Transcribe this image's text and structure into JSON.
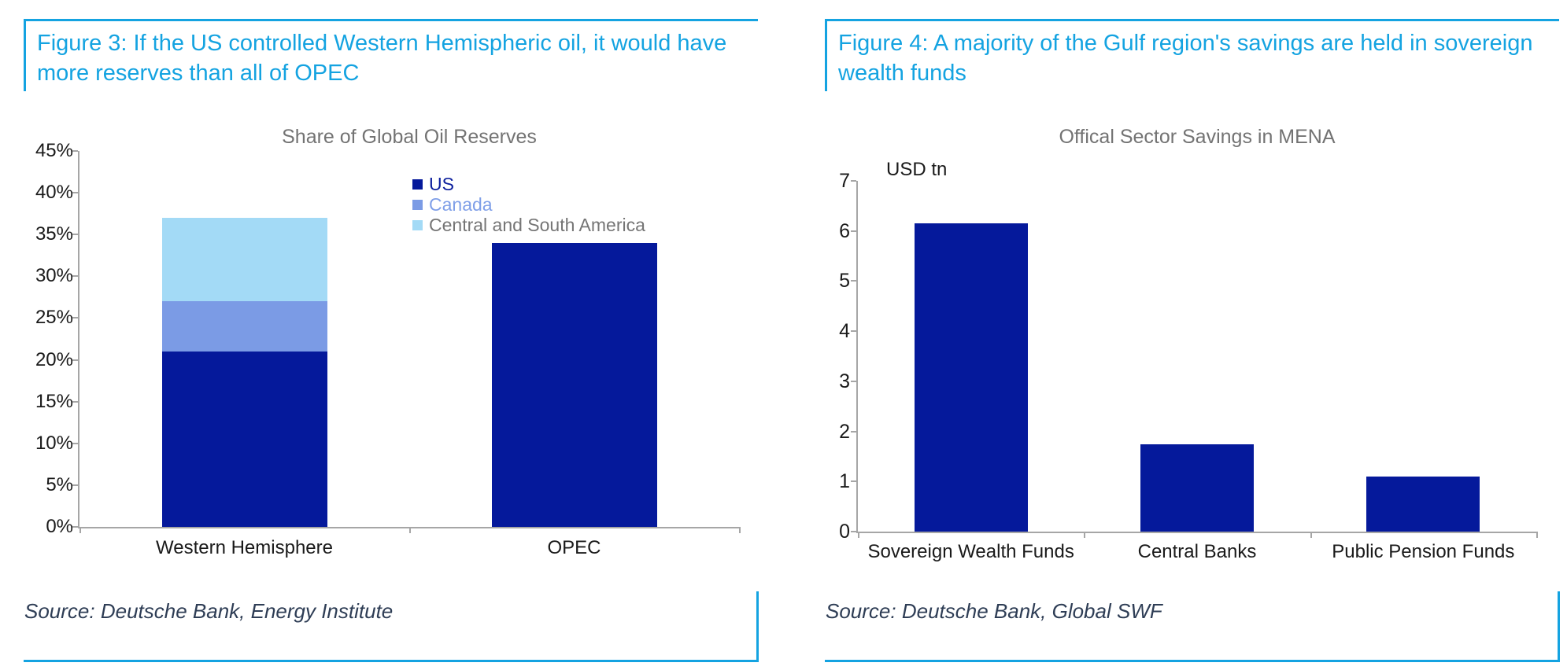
{
  "page": {
    "background": "#FFFFFF",
    "accent_color": "#14A3E1",
    "bar_navy": "#05199B",
    "axis_color": "#A6A6A6"
  },
  "figures": [
    {
      "title": "Figure 3: If the US controlled Western Hemispheric oil, it would have more reserves than all of OPEC",
      "source": "Source: Deutsche Bank, Energy Institute",
      "chart_data": {
        "type": "bar",
        "stacked": true,
        "title": "Share of Global Oil Reserves",
        "value_format": "percent",
        "ylim": [
          0,
          45
        ],
        "yticks": [
          0,
          5,
          10,
          15,
          20,
          25,
          30,
          35,
          40,
          45
        ],
        "grid": false,
        "legend_position": "top-right-of-plot",
        "categories": [
          "Western Hemisphere",
          "OPEC"
        ],
        "stacks": [
          {
            "category": "Western Hemisphere",
            "segments": [
              {
                "name": "US",
                "value": 21
              },
              {
                "name": "Canada",
                "value": 6
              },
              {
                "name": "Central and South America",
                "value": 10
              }
            ]
          },
          {
            "category": "OPEC",
            "segments": [
              {
                "name": "OPEC",
                "value": 34
              }
            ]
          }
        ],
        "series_colors": {
          "US": "#05199B",
          "Canada": "#7B9BE5",
          "Central and South America": "#A3DAF6",
          "OPEC": "#05199B"
        },
        "legend": [
          {
            "label": "US",
            "swatch": "#05199B",
            "text_color": "#0A1D9C"
          },
          {
            "label": "Canada",
            "swatch": "#7B9BE5",
            "text_color": "#7F9FE8"
          },
          {
            "label": "Central and South America",
            "swatch": "#A3DAF6",
            "text_color": "#757575"
          }
        ]
      }
    },
    {
      "title": "Figure 4: A majority of the Gulf region's savings are held in sovereign wealth funds",
      "source": "Source: Deutsche Bank, Global SWF",
      "chart_data": {
        "type": "bar",
        "stacked": false,
        "title": "Offical Sector Savings in MENA",
        "axis_unit_label": "USD tn",
        "ylim": [
          0,
          7
        ],
        "yticks": [
          0,
          1,
          2,
          3,
          4,
          5,
          6,
          7
        ],
        "grid": false,
        "categories": [
          "Sovereign Wealth Funds",
          "Central Banks",
          "Public Pension Funds"
        ],
        "values": [
          6.15,
          1.75,
          1.1
        ],
        "bar_color": "#05199B"
      }
    }
  ]
}
